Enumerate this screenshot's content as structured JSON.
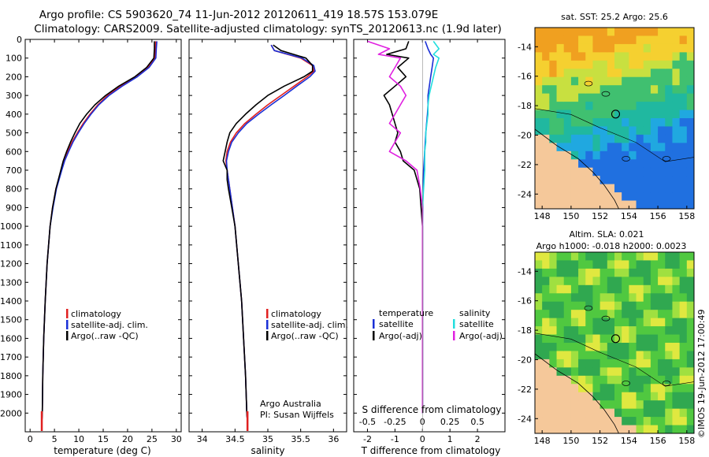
{
  "header": {
    "line1": "Argo profile: CS 5903620_74 11-Jun-2012 20120611_419 18.57S 153.079E",
    "line2": "Climatology: CARS2009. Satellite-adjusted climatology: synTS_20120613.nc (1.9d later)"
  },
  "colors": {
    "clim": "#e02020",
    "sat": "#1a2fd6",
    "argo": "#000000",
    "cyan": "#22dede",
    "magenta": "#e020e0",
    "land": "#f5c89a"
  },
  "chart_data": [
    {
      "type": "line",
      "name": "temperature-panel",
      "xlabel": "temperature (deg C)",
      "ylim": [
        2100,
        0
      ],
      "xlim": [
        -1,
        31
      ],
      "xticks": [
        0,
        5,
        10,
        15,
        20,
        25,
        30
      ],
      "yticks": [
        0,
        100,
        200,
        300,
        400,
        500,
        600,
        700,
        800,
        900,
        1000,
        1100,
        1200,
        1300,
        1400,
        1500,
        1600,
        1700,
        1800,
        1900,
        2000
      ],
      "depth": [
        10,
        50,
        100,
        150,
        200,
        250,
        300,
        350,
        400,
        450,
        500,
        550,
        600,
        650,
        700,
        800,
        900,
        1000,
        1200,
        1400,
        1600,
        1800,
        2000,
        2050
      ],
      "series": [
        {
          "name": "climatology",
          "color_key": "clim",
          "values": [
            25.8,
            25.7,
            25.6,
            24.2,
            21.9,
            18.6,
            15.9,
            13.9,
            12.3,
            10.9,
            9.7,
            8.6,
            7.7,
            7.0,
            6.4,
            5.3,
            4.6,
            4.1,
            3.5,
            3.1,
            2.8,
            2.6,
            2.5,
            2.4
          ]
        },
        {
          "name": "satellite-adj. clim.",
          "color_key": "sat",
          "values": [
            26.0,
            25.9,
            25.8,
            24.4,
            22.0,
            18.9,
            16.2,
            14.1,
            12.5,
            11.1,
            9.9,
            8.8,
            7.9,
            7.1,
            6.5,
            5.4,
            4.7,
            4.1,
            3.5,
            3.1,
            2.8,
            2.6,
            2.5,
            2.4
          ]
        },
        {
          "name": "Argo(..raw -QC)",
          "color_key": "argo",
          "values": [
            25.5,
            25.5,
            25.4,
            23.9,
            21.5,
            18.2,
            15.5,
            13.3,
            11.6,
            10.2,
            9.2,
            8.3,
            7.5,
            6.8,
            6.3,
            5.3,
            4.6,
            4.1,
            3.5,
            3.1,
            2.8,
            2.6,
            2.5,
            2.4
          ]
        }
      ],
      "legend": [
        "climatology",
        "satellite-adj. clim.",
        "Argo(..raw -QC)"
      ]
    },
    {
      "type": "line",
      "name": "salinity-panel",
      "xlabel": "salinity",
      "xlim": [
        33.8,
        36.2
      ],
      "xticks": [
        34,
        34.5,
        35,
        35.5,
        36
      ],
      "depth": [
        30,
        60,
        100,
        140,
        170,
        200,
        250,
        300,
        350,
        400,
        450,
        500,
        550,
        600,
        650,
        700,
        750,
        800,
        900,
        1000,
        1200,
        1400,
        1600,
        1800,
        2000,
        2050
      ],
      "series": [
        {
          "name": "climatology",
          "color_key": "clim",
          "values": [
            35.05,
            35.1,
            35.5,
            35.68,
            35.7,
            35.6,
            35.4,
            35.2,
            35.0,
            34.82,
            34.65,
            34.52,
            34.43,
            34.38,
            34.36,
            34.38,
            34.4,
            34.42,
            34.46,
            34.5,
            34.55,
            34.6,
            34.63,
            34.66,
            34.68,
            34.69
          ]
        },
        {
          "name": "satellite-adj. clim.",
          "color_key": "sat",
          "values": [
            35.05,
            35.1,
            35.52,
            35.7,
            35.72,
            35.64,
            35.44,
            35.25,
            35.05,
            34.86,
            34.68,
            34.55,
            34.45,
            34.4,
            34.37,
            34.38,
            34.4,
            34.42,
            34.46,
            34.5,
            34.55,
            34.6,
            34.63,
            34.66,
            34.68,
            34.69
          ]
        },
        {
          "name": "Argo(..raw -QC)",
          "color_key": "argo",
          "values": [
            35.08,
            35.2,
            35.58,
            35.68,
            35.68,
            35.55,
            35.25,
            35.0,
            34.82,
            34.66,
            34.52,
            34.42,
            34.38,
            34.35,
            34.32,
            34.38,
            34.38,
            34.4,
            34.45,
            34.5,
            34.55,
            34.6,
            34.63,
            34.66,
            34.68,
            34.69
          ]
        }
      ],
      "legend": [
        "climatology",
        "satellite-adj. clim.",
        "Argo(..raw -QC)"
      ],
      "annotation": [
        "Argo Australia",
        "PI: Susan Wijffels"
      ]
    },
    {
      "type": "line",
      "name": "difference-panel",
      "xlabel": "T difference from climatology",
      "xlabel_top": "S difference from climatology",
      "xlim": [
        -2.5,
        3
      ],
      "xticks": [
        -2,
        -1,
        0,
        1,
        2
      ],
      "sticks": [
        -0.5,
        -0.25,
        0,
        0.25,
        0.5
      ],
      "sticklabels": [
        "-0.5",
        "-0.25",
        "0",
        "0.25",
        "0.5"
      ],
      "depth": [
        10,
        50,
        80,
        100,
        150,
        200,
        250,
        300,
        350,
        400,
        450,
        500,
        550,
        600,
        650,
        700,
        800,
        900,
        1000,
        1200,
        1400,
        1600,
        1800,
        2000
      ],
      "series": [
        {
          "name": "T satellite",
          "color_key": "sat",
          "values": [
            0.1,
            0.2,
            0.3,
            0.4,
            0.35,
            0.3,
            0.25,
            0.2,
            0.2,
            0.18,
            0.15,
            0.12,
            0.1,
            0.08,
            0.06,
            0.04,
            0.02,
            0.01,
            0,
            0,
            0,
            0,
            0,
            0
          ]
        },
        {
          "name": "T Argo(-adj)",
          "color_key": "argo",
          "values": [
            -0.5,
            -0.6,
            -1.3,
            -0.5,
            -0.9,
            -0.6,
            -1.0,
            -1.4,
            -1.2,
            -1.1,
            -1.0,
            -0.9,
            -1.0,
            -0.8,
            -0.7,
            -0.3,
            -0.1,
            -0.05,
            0,
            0,
            0,
            0,
            0,
            0
          ]
        },
        {
          "name": "S satellite",
          "color_key": "cyan",
          "values": [
            0.1,
            0.15,
            0.1,
            0.15,
            0.12,
            0.1,
            0.08,
            0.06,
            0.05,
            0.05,
            0.04,
            0.03,
            0.03,
            0.02,
            0.02,
            0.02,
            0.01,
            0,
            0,
            0,
            0,
            0,
            0,
            0
          ]
        },
        {
          "name": "S Argo(-adj)",
          "color_key": "magenta",
          "values": [
            -0.5,
            -0.3,
            -0.4,
            -0.2,
            -0.25,
            -0.3,
            -0.2,
            -0.15,
            -0.2,
            -0.25,
            -0.3,
            -0.2,
            -0.25,
            -0.3,
            -0.15,
            -0.05,
            -0.02,
            0,
            0,
            0,
            0,
            0,
            0,
            0
          ]
        }
      ],
      "legend_left_title": "temperature",
      "legend_right_title": "salinity",
      "legend_left": [
        "satellite",
        "Argo(-adj)"
      ],
      "legend_right": [
        "satellite",
        "Argo(-adj)"
      ]
    },
    {
      "type": "heatmap",
      "name": "sst-map",
      "title": "sat. SST: 25.2 Argo: 25.6",
      "xticks": [
        148,
        150,
        152,
        154,
        156,
        158
      ],
      "yticks": [
        -14,
        -16,
        -18,
        -20,
        -22,
        -24
      ],
      "xlim": [
        147.5,
        158.5
      ],
      "ylim": [
        -25,
        -12.7
      ],
      "argo_position": [
        153.08,
        -18.57
      ]
    },
    {
      "type": "heatmap",
      "name": "sla-map",
      "title": "Altim. SLA: 0.021",
      "subtitle": "Argo h1000: -0.018 h2000: 0.0023",
      "xticks": [
        148,
        150,
        152,
        154,
        156,
        158
      ],
      "yticks": [
        -14,
        -16,
        -18,
        -20,
        -22,
        -24
      ],
      "xlim": [
        147.5,
        158.5
      ],
      "ylim": [
        -25,
        -12.7
      ],
      "argo_position": [
        153.08,
        -18.57
      ]
    }
  ],
  "side_label": "©IMOS 19-Jun-2012 17:00:49"
}
